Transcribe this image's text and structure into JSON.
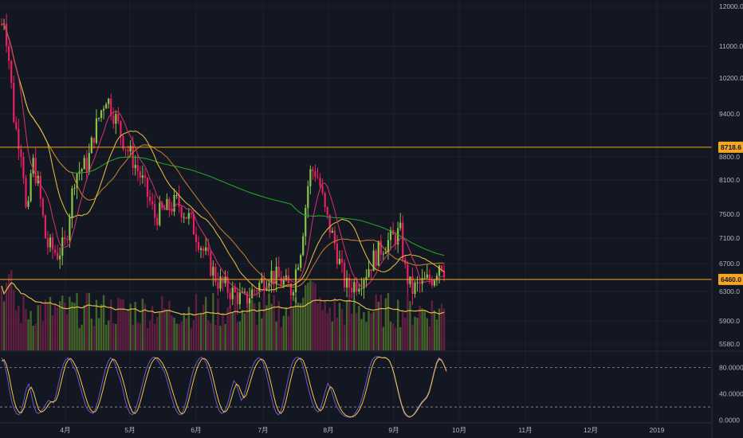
{
  "chart_data": [
    {
      "type": "candlestick",
      "title": "",
      "x_axis": {
        "tick_labels": [
          "4月",
          "5月",
          "6月",
          "7月",
          "8月",
          "9月",
          "10月",
          "11月",
          "12月",
          "2019"
        ]
      },
      "y_axis": {
        "tick_labels": [
          "12000.0",
          "11000.0",
          "10200.0",
          "9400.0",
          "8800.0",
          "8100.0",
          "7500.0",
          "7100.0",
          "6700.0",
          "6300.0",
          "5900.0",
          "5580.0"
        ],
        "ylim": [
          5500,
          12100
        ],
        "scale": "log"
      },
      "horizontal_lines": [
        {
          "value": 8718.6,
          "label": "8718.6",
          "color": "#f5a623"
        },
        {
          "value": 6460.0,
          "label": "6460.0",
          "color": "#f5a623"
        }
      ],
      "moving_averages": [
        {
          "color": "#26a826"
        },
        {
          "color": "#c77b2a"
        },
        {
          "color": "#e0c040"
        },
        {
          "color": "#d0336a"
        }
      ],
      "candle_colors": {
        "up": "#8bc34a",
        "down": "#e91e63"
      }
    },
    {
      "type": "line",
      "title": "",
      "y_axis": {
        "tick_labels": [
          "80.0000",
          "40.0000",
          "0.0000"
        ],
        "ylim": [
          -3,
          105
        ]
      },
      "reference_lines": [
        80,
        20
      ],
      "series": [
        {
          "values": [
            95,
            88,
            72,
            50,
            30,
            18,
            10,
            8,
            14,
            30,
            48,
            55,
            40,
            22,
            12,
            10,
            14,
            18,
            25,
            30,
            28,
            26,
            38,
            55,
            72,
            85,
            92,
            95,
            90,
            82,
            75,
            62,
            48,
            35,
            22,
            15,
            12,
            10,
            18,
            30,
            45,
            62,
            78,
            88,
            95,
            92,
            85,
            72,
            62,
            48,
            30,
            18,
            10,
            8,
            14,
            26,
            40,
            55,
            70,
            82,
            90,
            95,
            96,
            92,
            86,
            80,
            72,
            60,
            45,
            32,
            20,
            12,
            8,
            10,
            20,
            34,
            52,
            68,
            80,
            88,
            94,
            96,
            92,
            85,
            72,
            58,
            40,
            26,
            15,
            10,
            12,
            20,
            32,
            48,
            60,
            55,
            42,
            30,
            36,
            50,
            64,
            76,
            86,
            92,
            95,
            93,
            86,
            72,
            55,
            38,
            22,
            12,
            8,
            14,
            28,
            46,
            64,
            80,
            90,
            95,
            96,
            92,
            82,
            66,
            50,
            36,
            24,
            16,
            12,
            18,
            30,
            44,
            56,
            50,
            38,
            26,
            18,
            12,
            8,
            6,
            5,
            4,
            6,
            10,
            16,
            24,
            36,
            50,
            66,
            82,
            92,
            96,
            97,
            96,
            95,
            96,
            94,
            90,
            80,
            66,
            50,
            34,
            20,
            10,
            6,
            4,
            6,
            10,
            16,
            22,
            28,
            32,
            36,
            44,
            58,
            74,
            88,
            95,
            92,
            84,
            76
          ],
          "color": "#6a5acd"
        },
        {
          "values": [
            90,
            92,
            84,
            68,
            48,
            30,
            18,
            12,
            11,
            18,
            32,
            46,
            50,
            42,
            28,
            16,
            12,
            14,
            18,
            24,
            28,
            28,
            30,
            40,
            56,
            72,
            85,
            92,
            94,
            89,
            82,
            73,
            61,
            48,
            35,
            24,
            16,
            12,
            13,
            20,
            32,
            46,
            62,
            76,
            87,
            93,
            91,
            84,
            74,
            62,
            48,
            32,
            20,
            12,
            10,
            15,
            26,
            40,
            55,
            69,
            81,
            89,
            94,
            95,
            92,
            87,
            80,
            71,
            59,
            46,
            34,
            22,
            13,
            9,
            12,
            21,
            35,
            51,
            66,
            78,
            87,
            93,
            94,
            91,
            84,
            73,
            57,
            41,
            27,
            17,
            12,
            14,
            21,
            33,
            46,
            55,
            52,
            42,
            34,
            38,
            50,
            63,
            75,
            84,
            90,
            93,
            91,
            84,
            72,
            56,
            39,
            24,
            14,
            10,
            15,
            28,
            45,
            62,
            77,
            88,
            93,
            94,
            91,
            81,
            67,
            52,
            38,
            26,
            18,
            14,
            18,
            29,
            42,
            51,
            48,
            38,
            27,
            18,
            12,
            8,
            6,
            5,
            5,
            7,
            11,
            17,
            26,
            38,
            52,
            68,
            82,
            91,
            95,
            96,
            95,
            95,
            94,
            90,
            81,
            68,
            52,
            36,
            22,
            12,
            7,
            5,
            6,
            9,
            14,
            20,
            26,
            30,
            34,
            42,
            56,
            72,
            86,
            93,
            91,
            84,
            74
          ],
          "color": "#f5c542"
        }
      ]
    }
  ]
}
